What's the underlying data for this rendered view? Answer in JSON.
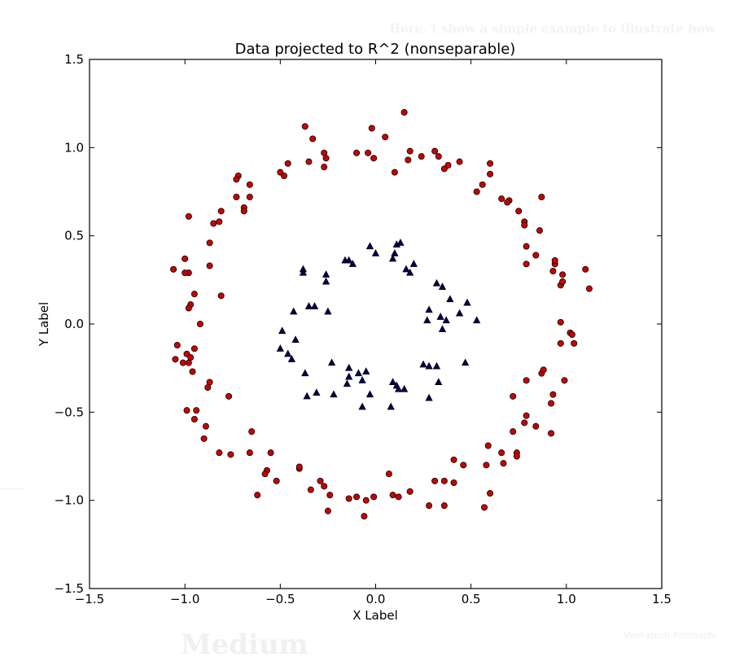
{
  "background": {
    "intro_text": "Here, I show a simple example to illustrate how",
    "logo_text": "Medium",
    "author_text": "Venkatesh Ponmozhi"
  },
  "colors": {
    "outer_points": "#cc0000",
    "inner_points": "#00005a",
    "axes": "#000000"
  },
  "chart_data": {
    "type": "scatter",
    "title": "Data projected to R^2 (nonseparable)",
    "xlabel": "X Label",
    "ylabel": "Y Label",
    "xlim": [
      -1.5,
      1.5
    ],
    "ylim": [
      -1.5,
      1.5
    ],
    "xticks": [
      -1.5,
      -1.0,
      -0.5,
      0.0,
      0.5,
      1.0,
      1.5
    ],
    "yticks": [
      -1.5,
      -1.0,
      -0.5,
      0.0,
      0.5,
      1.0,
      1.5
    ],
    "xtick_labels": [
      "−1.5",
      "−1.0",
      "−0.5",
      "0.0",
      "0.5",
      "1.0",
      "1.5"
    ],
    "ytick_labels": [
      "−1.5",
      "−1.0",
      "−0.5",
      "0.0",
      "0.5",
      "1.0",
      "1.5"
    ],
    "grid": false,
    "legend": "none",
    "series": [
      {
        "marker": "circle",
        "color": "#cc0000",
        "points": [
          [
            -0.02,
            1.11
          ],
          [
            0.15,
            1.2
          ],
          [
            -0.37,
            1.12
          ],
          [
            -0.33,
            1.05
          ],
          [
            -0.27,
            0.97
          ],
          [
            -0.26,
            0.94
          ],
          [
            -0.35,
            0.92
          ],
          [
            -0.27,
            0.89
          ],
          [
            -0.46,
            0.91
          ],
          [
            -0.5,
            0.86
          ],
          [
            -0.48,
            0.84
          ],
          [
            -0.04,
            0.97
          ],
          [
            -0.01,
            0.94
          ],
          [
            -0.1,
            0.97
          ],
          [
            0.05,
            1.06
          ],
          [
            0.18,
            0.98
          ],
          [
            0.17,
            0.93
          ],
          [
            0.1,
            0.86
          ],
          [
            0.24,
            0.95
          ],
          [
            0.31,
            0.98
          ],
          [
            0.33,
            0.95
          ],
          [
            0.36,
            0.88
          ],
          [
            0.38,
            0.9
          ],
          [
            0.44,
            0.92
          ],
          [
            -0.72,
            0.84
          ],
          [
            -0.73,
            0.82
          ],
          [
            -0.66,
            0.79
          ],
          [
            -0.66,
            0.72
          ],
          [
            -0.73,
            0.72
          ],
          [
            -0.69,
            0.66
          ],
          [
            -0.69,
            0.64
          ],
          [
            -0.98,
            0.61
          ],
          [
            -0.81,
            0.64
          ],
          [
            -0.82,
            0.58
          ],
          [
            -0.85,
            0.57
          ],
          [
            -0.87,
            0.46
          ],
          [
            -0.87,
            0.33
          ],
          [
            -1.06,
            0.31
          ],
          [
            -1.0,
            0.37
          ],
          [
            -0.98,
            0.29
          ],
          [
            -1.0,
            0.29
          ],
          [
            -0.95,
            0.17
          ],
          [
            -0.81,
            0.16
          ],
          [
            -0.97,
            0.11
          ],
          [
            -0.98,
            0.09
          ],
          [
            -0.92,
            0.0
          ],
          [
            -1.04,
            -0.12
          ],
          [
            -0.99,
            -0.17
          ],
          [
            -0.97,
            -0.19
          ],
          [
            -0.95,
            -0.14
          ],
          [
            -1.05,
            -0.2
          ],
          [
            -1.01,
            -0.22
          ],
          [
            -0.98,
            -0.22
          ],
          [
            -0.96,
            -0.27
          ],
          [
            -0.87,
            -0.33
          ],
          [
            -0.88,
            -0.36
          ],
          [
            -0.77,
            -0.41
          ],
          [
            -0.99,
            -0.49
          ],
          [
            -0.94,
            -0.49
          ],
          [
            -0.95,
            -0.54
          ],
          [
            -0.89,
            -0.58
          ],
          [
            -0.9,
            -0.65
          ],
          [
            -0.82,
            -0.73
          ],
          [
            -0.76,
            -0.74
          ],
          [
            -0.65,
            -0.61
          ],
          [
            -0.66,
            -0.73
          ],
          [
            -0.55,
            -0.73
          ],
          [
            -0.57,
            -0.83
          ],
          [
            -0.58,
            -0.85
          ],
          [
            -0.62,
            -0.97
          ],
          [
            -0.52,
            -0.89
          ],
          [
            -0.4,
            -0.82
          ],
          [
            -0.4,
            -0.81
          ],
          [
            -0.34,
            -0.94
          ],
          [
            -0.29,
            -0.89
          ],
          [
            -0.27,
            -0.92
          ],
          [
            -0.24,
            -0.97
          ],
          [
            -0.25,
            -1.06
          ],
          [
            -0.14,
            -0.99
          ],
          [
            -0.1,
            -0.98
          ],
          [
            -0.05,
            -1.0
          ],
          [
            -0.06,
            -1.09
          ],
          [
            -0.01,
            -0.98
          ],
          [
            0.07,
            -0.85
          ],
          [
            0.09,
            -0.97
          ],
          [
            0.12,
            -0.98
          ],
          [
            0.18,
            -0.95
          ],
          [
            0.28,
            -1.03
          ],
          [
            0.31,
            -0.89
          ],
          [
            0.36,
            -0.89
          ],
          [
            0.41,
            -0.9
          ],
          [
            0.36,
            -1.03
          ],
          [
            0.41,
            -0.77
          ],
          [
            0.46,
            -0.8
          ],
          [
            0.57,
            -1.04
          ],
          [
            0.6,
            -0.96
          ],
          [
            0.58,
            -0.8
          ],
          [
            0.59,
            -0.69
          ],
          [
            0.67,
            -0.79
          ],
          [
            0.66,
            -0.73
          ],
          [
            0.74,
            -0.73
          ],
          [
            0.74,
            -0.75
          ],
          [
            0.72,
            -0.61
          ],
          [
            0.78,
            -0.56
          ],
          [
            0.79,
            -0.52
          ],
          [
            0.84,
            -0.58
          ],
          [
            0.92,
            -0.62
          ],
          [
            0.72,
            -0.41
          ],
          [
            0.79,
            -0.32
          ],
          [
            0.87,
            -0.28
          ],
          [
            0.88,
            -0.26
          ],
          [
            0.93,
            -0.4
          ],
          [
            0.92,
            -0.45
          ],
          [
            0.99,
            -0.32
          ],
          [
            0.97,
            -0.11
          ],
          [
            1.02,
            -0.05
          ],
          [
            1.03,
            -0.06
          ],
          [
            1.04,
            -0.11
          ],
          [
            0.97,
            0.01
          ],
          [
            0.97,
            0.22
          ],
          [
            0.98,
            0.24
          ],
          [
            0.98,
            0.28
          ],
          [
            0.93,
            0.3
          ],
          [
            0.94,
            0.34
          ],
          [
            0.94,
            0.36
          ],
          [
            1.1,
            0.31
          ],
          [
            1.12,
            0.2
          ],
          [
            0.84,
            0.39
          ],
          [
            0.86,
            0.53
          ],
          [
            0.79,
            0.44
          ],
          [
            0.79,
            0.34
          ],
          [
            0.78,
            0.58
          ],
          [
            0.78,
            0.56
          ],
          [
            0.87,
            0.72
          ],
          [
            0.75,
            0.64
          ],
          [
            0.7,
            0.7
          ],
          [
            0.69,
            0.69
          ],
          [
            0.66,
            0.71
          ],
          [
            0.6,
            0.85
          ],
          [
            0.6,
            0.91
          ],
          [
            0.56,
            0.79
          ],
          [
            0.53,
            0.75
          ]
        ]
      },
      {
        "marker": "triangle",
        "color": "#00005a",
        "points": [
          [
            -0.03,
            0.44
          ],
          [
            0.11,
            0.45
          ],
          [
            0.13,
            0.46
          ],
          [
            0.1,
            0.4
          ],
          [
            0.0,
            0.4
          ],
          [
            -0.16,
            0.36
          ],
          [
            -0.14,
            0.36
          ],
          [
            -0.12,
            0.34
          ],
          [
            0.09,
            0.37
          ],
          [
            0.16,
            0.31
          ],
          [
            0.18,
            0.29
          ],
          [
            0.2,
            0.34
          ],
          [
            -0.38,
            0.31
          ],
          [
            -0.38,
            0.29
          ],
          [
            -0.26,
            0.28
          ],
          [
            -0.26,
            0.24
          ],
          [
            -0.35,
            0.1
          ],
          [
            -0.32,
            0.1
          ],
          [
            -0.25,
            0.07
          ],
          [
            -0.43,
            0.07
          ],
          [
            0.32,
            0.23
          ],
          [
            0.35,
            0.21
          ],
          [
            0.39,
            0.14
          ],
          [
            0.48,
            0.12
          ],
          [
            0.44,
            0.06
          ],
          [
            0.28,
            0.08
          ],
          [
            0.34,
            0.04
          ],
          [
            0.37,
            0.02
          ],
          [
            0.27,
            0.02
          ],
          [
            0.35,
            -0.03
          ],
          [
            0.53,
            0.02
          ],
          [
            -0.49,
            -0.04
          ],
          [
            -0.42,
            -0.09
          ],
          [
            -0.5,
            -0.14
          ],
          [
            -0.46,
            -0.17
          ],
          [
            -0.44,
            -0.2
          ],
          [
            -0.37,
            -0.28
          ],
          [
            -0.36,
            -0.41
          ],
          [
            -0.31,
            -0.39
          ],
          [
            -0.23,
            -0.22
          ],
          [
            -0.22,
            -0.4
          ],
          [
            -0.15,
            -0.34
          ],
          [
            -0.14,
            -0.3
          ],
          [
            -0.14,
            -0.25
          ],
          [
            -0.09,
            -0.28
          ],
          [
            -0.07,
            -0.32
          ],
          [
            -0.05,
            -0.27
          ],
          [
            -0.07,
            -0.47
          ],
          [
            -0.03,
            -0.4
          ],
          [
            0.08,
            -0.47
          ],
          [
            0.09,
            -0.33
          ],
          [
            0.11,
            -0.35
          ],
          [
            0.12,
            -0.37
          ],
          [
            0.15,
            -0.37
          ],
          [
            0.25,
            -0.23
          ],
          [
            0.28,
            -0.24
          ],
          [
            0.32,
            -0.24
          ],
          [
            0.33,
            -0.33
          ],
          [
            0.28,
            -0.42
          ],
          [
            0.47,
            -0.22
          ]
        ]
      }
    ]
  }
}
